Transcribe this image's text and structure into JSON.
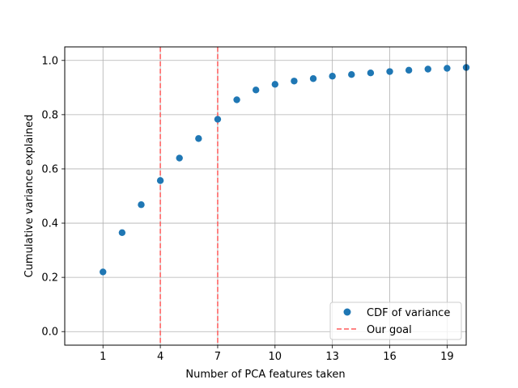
{
  "chart_data": {
    "type": "scatter",
    "xlabel": "Number of PCA features taken",
    "ylabel": "Cumulative variance explained",
    "xlim": [
      -1,
      20
    ],
    "ylim": [
      -0.05,
      1.05
    ],
    "xticks": [
      1,
      4,
      7,
      10,
      13,
      16,
      19
    ],
    "yticks": [
      0.0,
      0.2,
      0.4,
      0.6,
      0.8,
      1.0
    ],
    "ytick_labels": [
      "0.0",
      "0.2",
      "0.4",
      "0.6",
      "0.8",
      "1.0"
    ],
    "grid": true,
    "legend_position": "lower-right",
    "series": [
      {
        "name": "CDF of variance",
        "color": "#1f77b4",
        "marker": "circle",
        "x": [
          1,
          2,
          3,
          4,
          5,
          6,
          7,
          8,
          9,
          10,
          11,
          12,
          13,
          14,
          15,
          16,
          17,
          18,
          19,
          20
        ],
        "y": [
          0.22,
          0.365,
          0.468,
          0.557,
          0.64,
          0.712,
          0.783,
          0.855,
          0.891,
          0.912,
          0.924,
          0.933,
          0.942,
          0.948,
          0.954,
          0.959,
          0.964,
          0.968,
          0.971,
          0.974
        ]
      }
    ],
    "vlines": {
      "name": "Our goal",
      "color": "#ff5c5c",
      "style": "dashed",
      "x": [
        4,
        7
      ]
    }
  }
}
